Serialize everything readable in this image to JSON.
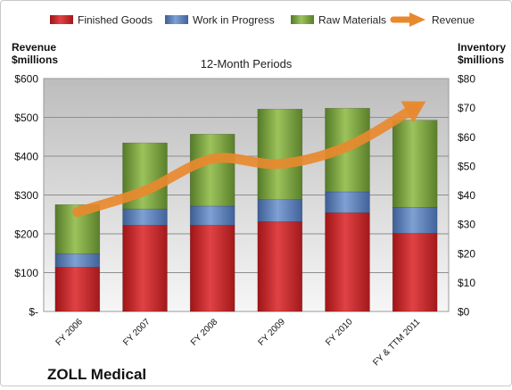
{
  "chart_data": {
    "type": "bar",
    "stacked": true,
    "title": "12-Month Periods",
    "company": "ZOLL Medical",
    "categories": [
      "FY 2006",
      "FY 2007",
      "FY 2008",
      "FY 2009",
      "FY 2010",
      "FY & TTM 2011"
    ],
    "y_left": {
      "label_line1": "Revenue",
      "label_line2": "$millions",
      "ylim": [
        0,
        600
      ],
      "ticks": [
        {
          "value": 0,
          "label": "$-"
        },
        {
          "value": 100,
          "label": "$100"
        },
        {
          "value": 200,
          "label": "$200"
        },
        {
          "value": 300,
          "label": "$300"
        },
        {
          "value": 400,
          "label": "$400"
        },
        {
          "value": 500,
          "label": "$500"
        },
        {
          "value": 600,
          "label": "$600"
        }
      ]
    },
    "y_right": {
      "label_line1": "Inventory",
      "label_line2": "$millions",
      "ylim": [
        0,
        80
      ],
      "ticks": [
        {
          "value": 0,
          "label": "$0"
        },
        {
          "value": 10,
          "label": "$10"
        },
        {
          "value": 20,
          "label": "$20"
        },
        {
          "value": 30,
          "label": "$30"
        },
        {
          "value": 40,
          "label": "$40"
        },
        {
          "value": 50,
          "label": "$50"
        },
        {
          "value": 60,
          "label": "$60"
        },
        {
          "value": 70,
          "label": "$70"
        },
        {
          "value": 80,
          "label": "$80"
        }
      ]
    },
    "series": [
      {
        "name": "Finished Goods",
        "axis": "right",
        "kind": "bar",
        "color": "#c8282a",
        "values": [
          15.2,
          29.6,
          29.6,
          30.8,
          33.9,
          26.8
        ]
      },
      {
        "name": "Work in Progress",
        "axis": "right",
        "kind": "bar",
        "color": "#4f74b0",
        "values": [
          4.6,
          5.6,
          6.6,
          7.6,
          7.2,
          8.9
        ]
      },
      {
        "name": "Raw Materials",
        "axis": "right",
        "kind": "bar",
        "color": "#6f9a37",
        "values": [
          16.9,
          22.7,
          24.7,
          31.1,
          28.7,
          30.0
        ]
      },
      {
        "name": "Revenue",
        "axis": "left",
        "kind": "line",
        "color": "#e8892e",
        "values": [
          256,
          311,
          393,
          380,
          425,
          525
        ]
      }
    ],
    "grid": true,
    "legend_position": "top"
  }
}
